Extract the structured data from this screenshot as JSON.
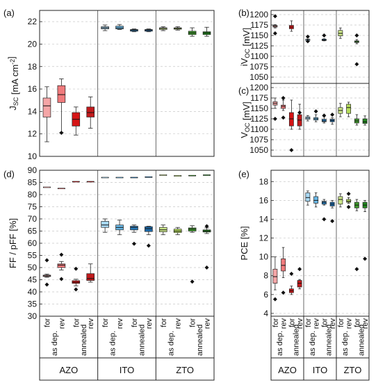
{
  "groups": {
    "materials": [
      "AZO",
      "ITO",
      "ZTO"
    ],
    "conditions": [
      "as dep.",
      "annealed"
    ],
    "sweeps": [
      "for",
      "rev"
    ]
  },
  "colors": {
    "AZO": [
      "#f4a5a6",
      "#f07a7c",
      "#d51516",
      "#c11a1c"
    ],
    "ITO": [
      "#a9d9f5",
      "#6ab9e8",
      "#2a7fc0",
      "#1c6aab"
    ],
    "ZTO": [
      "#cde88a",
      "#b6dd5c",
      "#3e9a2c",
      "#228a1e"
    ]
  },
  "chart_data": [
    {
      "panel": "(a)",
      "type": "box",
      "ylabel": "J_SC [mA cm^-2]",
      "ylim": [
        10,
        23
      ],
      "yticks": [
        "10",
        "12",
        "14",
        "16",
        "18",
        "20",
        "22"
      ],
      "boxes": [
        [
          11.3,
          13.5,
          14.5,
          15.2,
          16.2
        ],
        [
          12.1,
          14.8,
          15.5,
          16.3,
          16.9
        ],
        [
          11.9,
          12.7,
          13.3,
          13.9,
          14.4
        ],
        [
          12.5,
          13.5,
          13.9,
          14.4,
          15.3
        ],
        [
          21.2,
          21.35,
          21.45,
          21.55,
          21.7
        ],
        [
          21.3,
          21.35,
          21.45,
          21.6,
          21.75
        ],
        [
          21.1,
          21.15,
          21.25,
          21.3,
          21.35
        ],
        [
          21.1,
          21.15,
          21.25,
          21.3,
          21.35
        ],
        [
          21.2,
          21.3,
          21.4,
          21.45,
          21.55
        ],
        [
          21.25,
          21.35,
          21.4,
          21.45,
          21.55
        ],
        [
          20.7,
          20.85,
          21.0,
          21.15,
          21.45
        ],
        [
          20.7,
          20.85,
          21.0,
          21.1,
          21.5
        ]
      ],
      "outliers": [
        [],
        [
          12.1
        ],
        [],
        [],
        [],
        [],
        [],
        [],
        [],
        [],
        [],
        []
      ]
    },
    {
      "panel": "(b)",
      "type": "box",
      "ylabel": "iV_OC [mV]",
      "ylim": [
        1035,
        1210
      ],
      "yticks": [
        "1050",
        "1075",
        "1100",
        "1125",
        "1150",
        "1175",
        "1200"
      ],
      "boxes": [
        [
          1168,
          1170,
          1172,
          1174,
          1176
        ],
        null,
        [
          1160,
          1166,
          1170,
          1174,
          1185
        ],
        null,
        [
          1141,
          1141,
          1141,
          1141,
          1141
        ],
        null,
        [
          1137,
          1138,
          1139,
          1141,
          1142
        ],
        null,
        [
          1143,
          1149,
          1155,
          1162,
          1168
        ],
        null,
        [
          1130,
          1133,
          1135,
          1137,
          1140
        ],
        null
      ],
      "outliers": [
        [
          1196,
          1155
        ],
        [],
        [],
        [],
        [
          1147,
          1136
        ],
        [],
        [
          1150
        ],
        [],
        [],
        [],
        [
          1150,
          1081
        ],
        []
      ]
    },
    {
      "panel": "(c)",
      "type": "box",
      "ylabel": "V_OC [mV]",
      "ylim": [
        1035,
        1210
      ],
      "yticks": [
        "1050",
        "1075",
        "1100",
        "1125",
        "1150",
        "1175",
        "1200"
      ],
      "boxes": [
        [
          1150,
          1158,
          1162,
          1166,
          1175
        ],
        [
          1145,
          1150,
          1155,
          1158,
          1170
        ],
        [
          1100,
          1108,
          1125,
          1140,
          1170
        ],
        [
          1100,
          1108,
          1122,
          1135,
          1160
        ],
        [
          1120,
          1124,
          1127,
          1130,
          1133
        ],
        [
          1118,
          1122,
          1125,
          1128,
          1135
        ],
        [
          1115,
          1118,
          1120,
          1124,
          1130
        ],
        [
          1112,
          1118,
          1121,
          1124,
          1128
        ],
        [
          1130,
          1138,
          1145,
          1152,
          1162
        ],
        [
          1130,
          1138,
          1152,
          1160,
          1165
        ],
        [
          1110,
          1115,
          1120,
          1125,
          1135
        ],
        [
          1110,
          1114,
          1118,
          1125,
          1132
        ]
      ],
      "outliers": [
        [
          1125
        ],
        [
          1175,
          1128
        ],
        [
          1050
        ],
        [
          1140
        ],
        [],
        [
          1143
        ],
        [
          1133
        ],
        [
          1135
        ],
        [],
        [],
        [],
        []
      ]
    },
    {
      "panel": "(d)",
      "type": "box",
      "secondary": "pFF dash markers",
      "ylabel": "FF / pFF [%]",
      "ylim": [
        30,
        90
      ],
      "yticks": [
        "30",
        "35",
        "40",
        "45",
        "50",
        "55",
        "60",
        "65",
        "70",
        "75",
        "80",
        "85",
        "90"
      ],
      "boxes": [
        [
          46.0,
          46.3,
          46.6,
          46.9,
          47.3
        ],
        [
          49.0,
          50.0,
          51.0,
          51.5,
          52.5
        ],
        [
          42.5,
          43.5,
          44.0,
          44.6,
          45.2
        ],
        [
          44.0,
          44.7,
          45.5,
          47.5,
          51.5
        ],
        [
          64.5,
          66.5,
          67.5,
          69.0,
          70.0
        ],
        [
          63.5,
          65.5,
          66.5,
          67.5,
          69.5
        ],
        [
          64.5,
          65.5,
          66.5,
          67.0,
          67.5
        ],
        [
          63.5,
          64.8,
          66.0,
          66.8,
          67.0
        ],
        [
          63.5,
          64.7,
          65.5,
          66.5,
          67.5
        ],
        [
          63.5,
          64.4,
          65.0,
          65.8,
          66.5
        ],
        [
          64.5,
          65.0,
          65.8,
          66.3,
          67.2
        ],
        [
          64.0,
          64.6,
          65.0,
          65.5,
          66.3
        ]
      ],
      "outliers": [
        [
          53.0,
          43.0
        ],
        [
          55.3,
          45.3
        ],
        [
          49.5,
          41.0
        ],
        [],
        [],
        [],
        [
          59.8
        ],
        [
          59.0
        ],
        [],
        [],
        [
          44.2
        ],
        [
          67.0,
          50.0
        ]
      ],
      "pff": [
        83.0,
        82.5,
        85.3,
        85.3,
        87.0,
        87.0,
        87.0,
        87.2,
        88.0,
        87.7,
        87.8,
        88.0
      ]
    },
    {
      "panel": "(e)",
      "type": "box",
      "ylabel": "PCE [%]",
      "ylim": [
        3.7,
        19.2
      ],
      "yticks": [
        "4",
        "6",
        "8",
        "10",
        "12",
        "14",
        "16",
        "18"
      ],
      "boxes": [
        [
          6.5,
          7.2,
          7.9,
          8.7,
          10.0
        ],
        [
          7.8,
          8.5,
          9.1,
          9.8,
          11.0
        ],
        [
          6.0,
          6.2,
          6.4,
          6.6,
          6.9
        ],
        [
          6.6,
          6.8,
          7.2,
          7.5,
          7.6
        ],
        [
          15.5,
          15.9,
          16.3,
          16.8,
          17.0
        ],
        [
          15.3,
          15.7,
          16.0,
          16.4,
          16.8
        ],
        [
          15.5,
          15.6,
          15.8,
          15.9,
          16.1
        ],
        [
          15.2,
          15.4,
          15.6,
          15.8,
          16.0
        ],
        [
          15.3,
          15.6,
          16.1,
          16.4,
          16.7
        ],
        [
          15.7,
          15.8,
          15.9,
          16.1,
          16.3
        ],
        [
          14.9,
          15.2,
          15.5,
          15.8,
          16.1
        ],
        [
          14.8,
          15.2,
          15.5,
          15.8,
          16.0
        ]
      ],
      "outliers": [
        [
          5.5
        ],
        [
          6.2
        ],
        [
          8.2
        ],
        [
          8.7
        ],
        [],
        [],
        [
          14.0
        ],
        [
          13.8
        ],
        [],
        [
          16.7,
          15.3
        ],
        [
          8.7
        ],
        [
          9.8
        ]
      ]
    }
  ]
}
